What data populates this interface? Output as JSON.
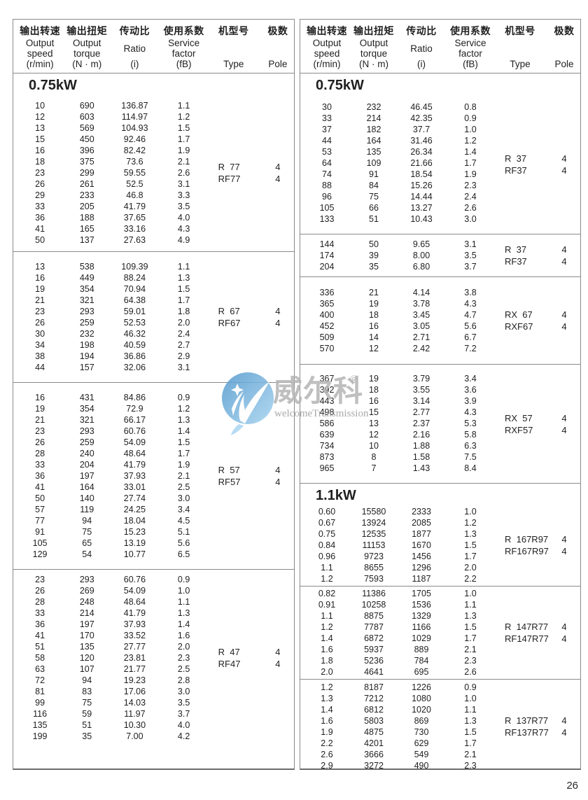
{
  "page": {
    "number": "26"
  },
  "watermark": {
    "brand_cn": "威尔科",
    "registered_mark": "®",
    "brand_en": "welcomeTransmission",
    "logo_blue_dark": "#4f97cd",
    "logo_blue_light": "#a6d3ef"
  },
  "header": {
    "cols": [
      {
        "cn": "输出转速",
        "lines": [
          "Output",
          "speed",
          "(r/min)"
        ]
      },
      {
        "cn": "输出扭矩",
        "lines": [
          "Output",
          "torque",
          "(N · m)"
        ]
      },
      {
        "cn": "传动比",
        "lines": [
          "Ratio",
          "(i)"
        ]
      },
      {
        "cn": "使用系数",
        "lines": [
          "Service",
          "factor",
          "(fB)"
        ]
      },
      {
        "cn": "机型号",
        "lines": [
          "Type"
        ]
      },
      {
        "cn": "极数",
        "lines": [
          "Pole"
        ]
      }
    ]
  },
  "panels": {
    "left": {
      "sections": [
        {
          "title": "0.75kW",
          "blocks": [
            {
              "types": [
                "R  77",
                "RF77"
              ],
              "poles": [
                "4",
                "4"
              ],
              "rows": [
                [
                  "10",
                  "690",
                  "136.87",
                  "1.1"
                ],
                [
                  "12",
                  "603",
                  "114.97",
                  "1.2"
                ],
                [
                  "13",
                  "569",
                  "104.93",
                  "1.5"
                ],
                [
                  "15",
                  "450",
                  "92.46",
                  "1.7"
                ],
                [
                  "16",
                  "396",
                  "82.42",
                  "1.9"
                ],
                [
                  "18",
                  "375",
                  "73.6",
                  "2.1"
                ],
                [
                  "23",
                  "299",
                  "59.55",
                  "2.6"
                ],
                [
                  "26",
                  "261",
                  "52.5",
                  "3.1"
                ],
                [
                  "29",
                  "233",
                  "46.8",
                  "3.3"
                ],
                [
                  "33",
                  "205",
                  "41.79",
                  "3.5"
                ],
                [
                  "36",
                  "188",
                  "37.65",
                  "4.0"
                ],
                [
                  "41",
                  "165",
                  "33.16",
                  "4.3"
                ],
                [
                  "50",
                  "137",
                  "27.63",
                  "4.9"
                ]
              ]
            },
            {
              "types": [
                "R  67",
                "RF67"
              ],
              "poles": [
                "4",
                "4"
              ],
              "rows": [
                [
                  "13",
                  "538",
                  "109.39",
                  "1.1"
                ],
                [
                  "16",
                  "449",
                  "88.24",
                  "1.3"
                ],
                [
                  "19",
                  "354",
                  "70.94",
                  "1.5"
                ],
                [
                  "21",
                  "321",
                  "64.38",
                  "1.7"
                ],
                [
                  "23",
                  "293",
                  "59.01",
                  "1.8"
                ],
                [
                  "26",
                  "259",
                  "52.53",
                  "2.0"
                ],
                [
                  "30",
                  "232",
                  "46.32",
                  "2.4"
                ],
                [
                  "34",
                  "198",
                  "40.59",
                  "2.7"
                ],
                [
                  "38",
                  "194",
                  "36.86",
                  "2.9"
                ],
                [
                  "44",
                  "157",
                  "32.06",
                  "3.1"
                ]
              ]
            },
            {
              "types": [
                "R  57",
                "RF57"
              ],
              "poles": [
                "4",
                "4"
              ],
              "rows": [
                [
                  "16",
                  "431",
                  "84.86",
                  "0.9"
                ],
                [
                  "19",
                  "354",
                  "72.9",
                  "1.2"
                ],
                [
                  "21",
                  "321",
                  "66.17",
                  "1.3"
                ],
                [
                  "23",
                  "293",
                  "60.76",
                  "1.4"
                ],
                [
                  "26",
                  "259",
                  "54.09",
                  "1.5"
                ],
                [
                  "28",
                  "240",
                  "48.64",
                  "1.7"
                ],
                [
                  "33",
                  "204",
                  "41.79",
                  "1.9"
                ],
                [
                  "36",
                  "197",
                  "37.93",
                  "2.1"
                ],
                [
                  "41",
                  "164",
                  "33.01",
                  "2.5"
                ],
                [
                  "50",
                  "140",
                  "27.74",
                  "3.0"
                ],
                [
                  "57",
                  "119",
                  "24.25",
                  "3.4"
                ],
                [
                  "77",
                  "94",
                  "18.04",
                  "4.5"
                ],
                [
                  "91",
                  "75",
                  "15.23",
                  "5.1"
                ],
                [
                  "105",
                  "65",
                  "13.19",
                  "5.6"
                ],
                [
                  "129",
                  "54",
                  "10.77",
                  "6.5"
                ]
              ]
            },
            {
              "types": [
                "R  47",
                "RF47"
              ],
              "poles": [
                "4",
                "4"
              ],
              "rows": [
                [
                  "23",
                  "293",
                  "60.76",
                  "0.9"
                ],
                [
                  "26",
                  "269",
                  "54.09",
                  "1.0"
                ],
                [
                  "28",
                  "248",
                  "48.64",
                  "1.1"
                ],
                [
                  "33",
                  "214",
                  "41.79",
                  "1.3"
                ],
                [
                  "36",
                  "197",
                  "37.93",
                  "1.4"
                ],
                [
                  "41",
                  "170",
                  "33.52",
                  "1.6"
                ],
                [
                  "51",
                  "135",
                  "27.77",
                  "2.0"
                ],
                [
                  "58",
                  "120",
                  "23.81",
                  "2.3"
                ],
                [
                  "63",
                  "107",
                  "21.77",
                  "2.5"
                ],
                [
                  "72",
                  "94",
                  "19.23",
                  "2.8"
                ],
                [
                  "81",
                  "83",
                  "17.06",
                  "3.0"
                ],
                [
                  "99",
                  "75",
                  "14.03",
                  "3.5"
                ],
                [
                  "116",
                  "59",
                  "11.97",
                  "3.7"
                ],
                [
                  "135",
                  "51",
                  "10.30",
                  "4.0"
                ],
                [
                  "199",
                  "35",
                  "7.00",
                  "4.2"
                ]
              ]
            }
          ]
        }
      ]
    },
    "right": {
      "sections": [
        {
          "title": "0.75kW",
          "blocks": [
            {
              "types": [
                "R  37",
                "RF37"
              ],
              "poles": [
                "4",
                "4"
              ],
              "rows": [
                [
                  "30",
                  "232",
                  "46.45",
                  "0.8"
                ],
                [
                  "33",
                  "214",
                  "42.35",
                  "0.9"
                ],
                [
                  "37",
                  "182",
                  "37.7",
                  "1.0"
                ],
                [
                  "44",
                  "164",
                  "31.46",
                  "1.2"
                ],
                [
                  "53",
                  "135",
                  "26.34",
                  "1.4"
                ],
                [
                  "64",
                  "109",
                  "21.66",
                  "1.7"
                ],
                [
                  "74",
                  "91",
                  "18.54",
                  "1.9"
                ],
                [
                  "88",
                  "84",
                  "15.26",
                  "2.3"
                ],
                [
                  "96",
                  "75",
                  "14.44",
                  "2.4"
                ],
                [
                  "105",
                  "66",
                  "13.27",
                  "2.6"
                ],
                [
                  "133",
                  "51",
                  "10.43",
                  "3.0"
                ]
              ]
            },
            {
              "types": [
                "R  37",
                "RF37"
              ],
              "poles": [
                "4",
                "4"
              ],
              "rows": [
                [
                  "144",
                  "50",
                  "9.65",
                  "3.1"
                ],
                [
                  "174",
                  "39",
                  "8.00",
                  "3.5"
                ],
                [
                  "204",
                  "35",
                  "6.80",
                  "3.7"
                ]
              ]
            },
            {
              "types": [
                "RX  67",
                "RXF67"
              ],
              "poles": [
                "4",
                "4"
              ],
              "rows": [
                [
                  "336",
                  "21",
                  "4.14",
                  "3.8"
                ],
                [
                  "365",
                  "19",
                  "3.78",
                  "4.3"
                ],
                [
                  "400",
                  "18",
                  "3.45",
                  "4.7"
                ],
                [
                  "452",
                  "16",
                  "3.05",
                  "5.6"
                ],
                [
                  "509",
                  "14",
                  "2.71",
                  "6.7"
                ],
                [
                  "570",
                  "12",
                  "2.42",
                  "7.2"
                ]
              ]
            },
            {
              "types": [
                "RX  57",
                "RXF57"
              ],
              "poles": [
                "4",
                "4"
              ],
              "rows": [
                [
                  "367",
                  "19",
                  "3.79",
                  "3.4"
                ],
                [
                  "392",
                  "18",
                  "3.55",
                  "3.6"
                ],
                [
                  "443",
                  "16",
                  "3.14",
                  "3.9"
                ],
                [
                  "498",
                  "15",
                  "2.77",
                  "4.3"
                ],
                [
                  "586",
                  "13",
                  "2.37",
                  "5.3"
                ],
                [
                  "639",
                  "12",
                  "2.16",
                  "5.8"
                ],
                [
                  "734",
                  "10",
                  "1.88",
                  "6.3"
                ],
                [
                  "873",
                  "8",
                  "1.58",
                  "7.5"
                ],
                [
                  "965",
                  "7",
                  "1.43",
                  "8.4"
                ]
              ]
            }
          ]
        },
        {
          "title": "1.1kW",
          "blocks": [
            {
              "types": [
                "R  167R97",
                "RF167R97"
              ],
              "poles": [
                "4",
                "4"
              ],
              "rows": [
                [
                  "0.60",
                  "15580",
                  "2333",
                  "1.0"
                ],
                [
                  "0.67",
                  "13924",
                  "2085",
                  "1.2"
                ],
                [
                  "0.75",
                  "12535",
                  "1877",
                  "1.3"
                ],
                [
                  "0.84",
                  "11153",
                  "1670",
                  "1.5"
                ],
                [
                  "0.96",
                  "9723",
                  "1456",
                  "1.7"
                ],
                [
                  "1.1",
                  "8655",
                  "1296",
                  "2.0"
                ],
                [
                  "1.2",
                  "7593",
                  "1187",
                  "2.2"
                ]
              ]
            },
            {
              "types": [
                "R  147R77",
                "RF147R77"
              ],
              "poles": [
                "4",
                "4"
              ],
              "rows": [
                [
                  "0.82",
                  "11386",
                  "1705",
                  "1.0"
                ],
                [
                  "0.91",
                  "10258",
                  "1536",
                  "1.1"
                ],
                [
                  "1.1",
                  "8875",
                  "1329",
                  "1.3"
                ],
                [
                  "1.2",
                  "7787",
                  "1166",
                  "1.5"
                ],
                [
                  "1.4",
                  "6872",
                  "1029",
                  "1.7"
                ],
                [
                  "1.6",
                  "5937",
                  "889",
                  "2.1"
                ],
                [
                  "1.8",
                  "5236",
                  "784",
                  "2.3"
                ],
                [
                  "2.0",
                  "4641",
                  "695",
                  "2.6"
                ]
              ]
            },
            {
              "types": [
                "R  137R77",
                "RF137R77"
              ],
              "poles": [
                "4",
                "4"
              ],
              "rows": [
                [
                  "1.2",
                  "8187",
                  "1226",
                  "0.9"
                ],
                [
                  "1.3",
                  "7212",
                  "1080",
                  "1.0"
                ],
                [
                  "1.4",
                  "6812",
                  "1020",
                  "1.1"
                ],
                [
                  "1.6",
                  "5803",
                  "869",
                  "1.3"
                ],
                [
                  "1.9",
                  "4875",
                  "730",
                  "1.5"
                ],
                [
                  "2.2",
                  "4201",
                  "629",
                  "1.7"
                ],
                [
                  "2.6",
                  "3666",
                  "549",
                  "2.1"
                ],
                [
                  "2.9",
                  "3272",
                  "490",
                  "2.3"
                ]
              ]
            }
          ]
        }
      ]
    }
  }
}
